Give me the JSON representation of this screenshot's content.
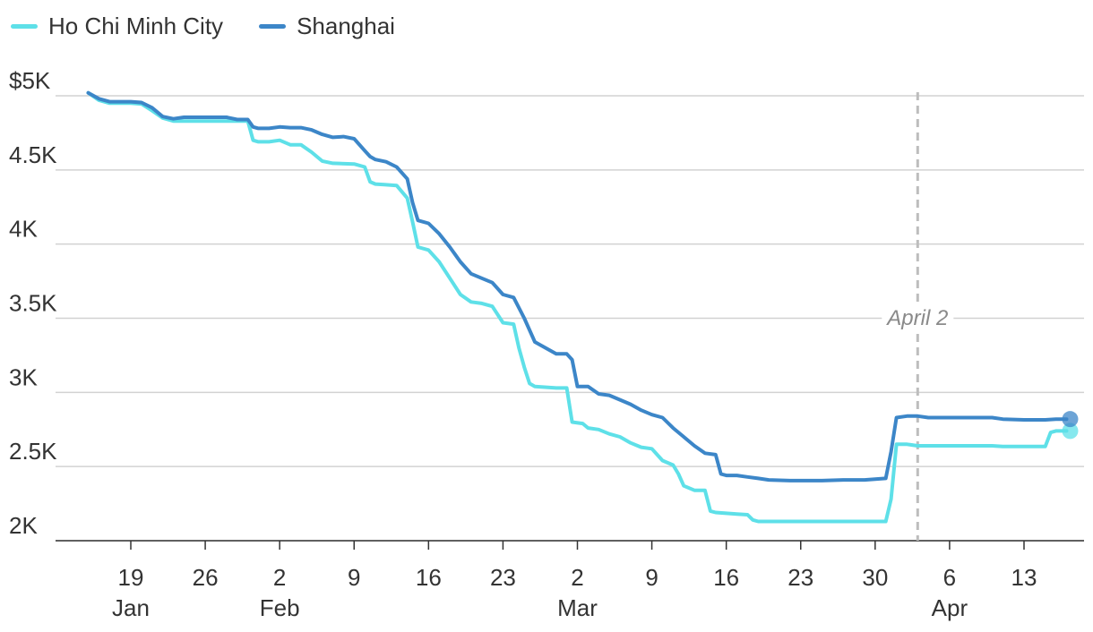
{
  "chart_data": {
    "type": "line",
    "y_tick_labels": [
      "$5K",
      "4.5K",
      "4K",
      "3.5K",
      "3K",
      "2.5K",
      "2K"
    ],
    "y_ticks": [
      5000,
      4500,
      4000,
      3500,
      3000,
      2500,
      2000
    ],
    "ylim": [
      1900,
      5100
    ],
    "x_tick_labels": [
      "19",
      "26",
      "2",
      "9",
      "16",
      "23",
      "2",
      "9",
      "16",
      "23",
      "30",
      "6",
      "13"
    ],
    "x_tick_days": [
      19,
      26,
      33,
      40,
      47,
      54,
      61,
      68,
      75,
      82,
      89,
      96,
      103
    ],
    "x_month_labels": [
      {
        "label": "Jan",
        "day": 19
      },
      {
        "label": "Feb",
        "day": 33
      },
      {
        "label": "Mar",
        "day": 61
      },
      {
        "label": "Apr",
        "day": 96
      }
    ],
    "xlim": [
      11,
      107.5
    ],
    "grid": true,
    "legend_position": "top-left",
    "annotation": {
      "label": "April 2",
      "day": 93
    },
    "series": [
      {
        "name": "Ho Chi Minh City",
        "color": "#5ee0e8",
        "points": [
          [
            15,
            5020
          ],
          [
            16,
            4970
          ],
          [
            17,
            4950
          ],
          [
            19,
            4950
          ],
          [
            20,
            4945
          ],
          [
            21,
            4900
          ],
          [
            22,
            4850
          ],
          [
            23,
            4830
          ],
          [
            26,
            4830
          ],
          [
            30,
            4830
          ],
          [
            30.5,
            4700
          ],
          [
            31,
            4690
          ],
          [
            32,
            4690
          ],
          [
            33,
            4700
          ],
          [
            34,
            4670
          ],
          [
            35,
            4670
          ],
          [
            36,
            4620
          ],
          [
            37,
            4560
          ],
          [
            38,
            4545
          ],
          [
            40,
            4540
          ],
          [
            41,
            4520
          ],
          [
            41.5,
            4420
          ],
          [
            42,
            4405
          ],
          [
            43,
            4400
          ],
          [
            44,
            4395
          ],
          [
            45,
            4310
          ],
          [
            45.5,
            4150
          ],
          [
            46,
            3980
          ],
          [
            47,
            3960
          ],
          [
            48,
            3880
          ],
          [
            49,
            3770
          ],
          [
            50,
            3660
          ],
          [
            51,
            3610
          ],
          [
            52,
            3600
          ],
          [
            53,
            3580
          ],
          [
            54,
            3470
          ],
          [
            55,
            3460
          ],
          [
            55.5,
            3300
          ],
          [
            56,
            3170
          ],
          [
            56.5,
            3060
          ],
          [
            57,
            3040
          ],
          [
            59,
            3030
          ],
          [
            60,
            3030
          ],
          [
            60.5,
            2800
          ],
          [
            61.5,
            2790
          ],
          [
            62,
            2760
          ],
          [
            63,
            2750
          ],
          [
            64,
            2720
          ],
          [
            65,
            2700
          ],
          [
            66,
            2660
          ],
          [
            67,
            2630
          ],
          [
            68,
            2620
          ],
          [
            69,
            2540
          ],
          [
            70,
            2510
          ],
          [
            70.5,
            2450
          ],
          [
            71,
            2370
          ],
          [
            72,
            2340
          ],
          [
            73,
            2340
          ],
          [
            73.5,
            2200
          ],
          [
            74,
            2190
          ],
          [
            76,
            2180
          ],
          [
            77,
            2175
          ],
          [
            77.5,
            2140
          ],
          [
            78,
            2130
          ],
          [
            81,
            2130
          ],
          [
            85,
            2130
          ],
          [
            90,
            2130
          ],
          [
            90.5,
            2280
          ],
          [
            91,
            2650
          ],
          [
            92,
            2650
          ],
          [
            93,
            2640
          ],
          [
            95,
            2640
          ],
          [
            98,
            2640
          ],
          [
            100,
            2640
          ],
          [
            101,
            2635
          ],
          [
            105,
            2635
          ],
          [
            105.5,
            2730
          ],
          [
            106,
            2740
          ],
          [
            107,
            2740
          ]
        ]
      },
      {
        "name": "Shanghai",
        "color": "#3c86c8",
        "points": [
          [
            15,
            5020
          ],
          [
            16,
            4980
          ],
          [
            17,
            4960
          ],
          [
            19,
            4960
          ],
          [
            20,
            4955
          ],
          [
            21,
            4920
          ],
          [
            22,
            4860
          ],
          [
            23,
            4845
          ],
          [
            24,
            4855
          ],
          [
            26,
            4855
          ],
          [
            28,
            4855
          ],
          [
            29,
            4840
          ],
          [
            30,
            4840
          ],
          [
            30.5,
            4790
          ],
          [
            31,
            4780
          ],
          [
            32,
            4780
          ],
          [
            33,
            4790
          ],
          [
            34,
            4785
          ],
          [
            35,
            4785
          ],
          [
            36,
            4770
          ],
          [
            37,
            4740
          ],
          [
            38,
            4720
          ],
          [
            39,
            4725
          ],
          [
            40,
            4710
          ],
          [
            41,
            4630
          ],
          [
            41.5,
            4590
          ],
          [
            42,
            4570
          ],
          [
            43,
            4555
          ],
          [
            44,
            4520
          ],
          [
            45,
            4440
          ],
          [
            45.5,
            4280
          ],
          [
            46,
            4160
          ],
          [
            47,
            4140
          ],
          [
            48,
            4070
          ],
          [
            49,
            3980
          ],
          [
            50,
            3880
          ],
          [
            51,
            3800
          ],
          [
            52,
            3770
          ],
          [
            53,
            3740
          ],
          [
            54,
            3660
          ],
          [
            55,
            3640
          ],
          [
            56,
            3500
          ],
          [
            57,
            3340
          ],
          [
            58,
            3300
          ],
          [
            59,
            3260
          ],
          [
            60,
            3260
          ],
          [
            60.5,
            3220
          ],
          [
            61,
            3040
          ],
          [
            62,
            3040
          ],
          [
            63,
            2990
          ],
          [
            64,
            2980
          ],
          [
            65,
            2950
          ],
          [
            66,
            2920
          ],
          [
            67,
            2880
          ],
          [
            68,
            2850
          ],
          [
            69,
            2830
          ],
          [
            70,
            2760
          ],
          [
            71,
            2700
          ],
          [
            72,
            2640
          ],
          [
            73,
            2590
          ],
          [
            74,
            2580
          ],
          [
            74.5,
            2450
          ],
          [
            75,
            2440
          ],
          [
            76,
            2440
          ],
          [
            77,
            2430
          ],
          [
            78,
            2420
          ],
          [
            79,
            2410
          ],
          [
            81,
            2405
          ],
          [
            84,
            2405
          ],
          [
            86,
            2410
          ],
          [
            88,
            2410
          ],
          [
            89,
            2415
          ],
          [
            90,
            2420
          ],
          [
            90.5,
            2600
          ],
          [
            91,
            2830
          ],
          [
            92,
            2840
          ],
          [
            93,
            2840
          ],
          [
            94,
            2830
          ],
          [
            97,
            2830
          ],
          [
            100,
            2830
          ],
          [
            101,
            2820
          ],
          [
            103,
            2815
          ],
          [
            105,
            2815
          ],
          [
            106,
            2820
          ],
          [
            107,
            2820
          ]
        ]
      }
    ]
  }
}
